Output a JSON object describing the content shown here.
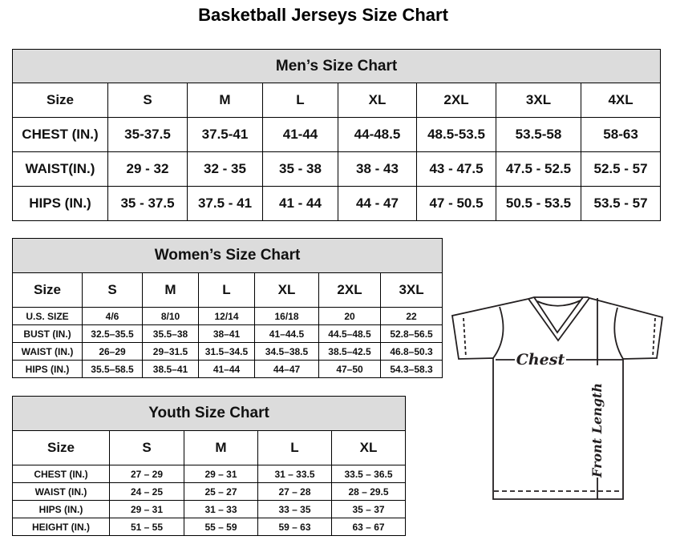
{
  "title": "Basketball Jerseys Size Chart",
  "men": {
    "title": "Men’s Size Chart",
    "header": [
      "Size",
      "S",
      "M",
      "L",
      "XL",
      "2XL",
      "3XL",
      "4XL"
    ],
    "rows": [
      [
        "CHEST (IN.)",
        "35-37.5",
        "37.5-41",
        "41-44",
        "44-48.5",
        "48.5-53.5",
        "53.5-58",
        "58-63"
      ],
      [
        "WAIST(IN.)",
        "29 - 32",
        "32 - 35",
        "35 - 38",
        "38 - 43",
        "43 - 47.5",
        "47.5 - 52.5",
        "52.5 - 57"
      ],
      [
        "HIPS (IN.)",
        "35 - 37.5",
        "37.5 - 41",
        "41 - 44",
        "44 - 47",
        "47 - 50.5",
        "50.5 - 53.5",
        "53.5 - 57"
      ]
    ]
  },
  "women": {
    "title": "Women’s Size Chart",
    "header": [
      "Size",
      "S",
      "M",
      "L",
      "XL",
      "2XL",
      "3XL"
    ],
    "rows": [
      [
        "U.S.  SIZE",
        "4/6",
        "8/10",
        "12/14",
        "16/18",
        "20",
        "22"
      ],
      [
        "BUST  (IN.)",
        "32.5–35.5",
        "35.5–38",
        "38–41",
        "41–44.5",
        "44.5–48.5",
        "52.8–56.5"
      ],
      [
        "WAIST  (IN.)",
        "26–29",
        "29–31.5",
        "31.5–34.5",
        "34.5–38.5",
        "38.5–42.5",
        "46.8–50.3"
      ],
      [
        "HIPS  (IN.)",
        "35.5–58.5",
        "38.5–41",
        "41–44",
        "44–47",
        "47–50",
        "54.3–58.3"
      ]
    ]
  },
  "youth": {
    "title": "Youth Size Chart",
    "header": [
      "Size",
      "S",
      "M",
      "L",
      "XL"
    ],
    "rows": [
      [
        "CHEST  (IN.)",
        "27  –  29",
        "29  –  31",
        "31  –  33.5",
        "33.5  –  36.5"
      ],
      [
        "WAIST  (IN.)",
        "24  –  25",
        "25  –  27",
        "27  –  28",
        "28  –  29.5"
      ],
      [
        "HIPS  (IN.)",
        "29  –  31",
        "31  –  33",
        "33  –  35",
        "35  –  37"
      ],
      [
        "HEIGHT  (IN.)",
        "51  –  55",
        "55  –  59",
        "59  –  63",
        "63  –  67"
      ]
    ]
  },
  "diagram": {
    "chest_label": "Chest",
    "length_label": "Front Length"
  }
}
